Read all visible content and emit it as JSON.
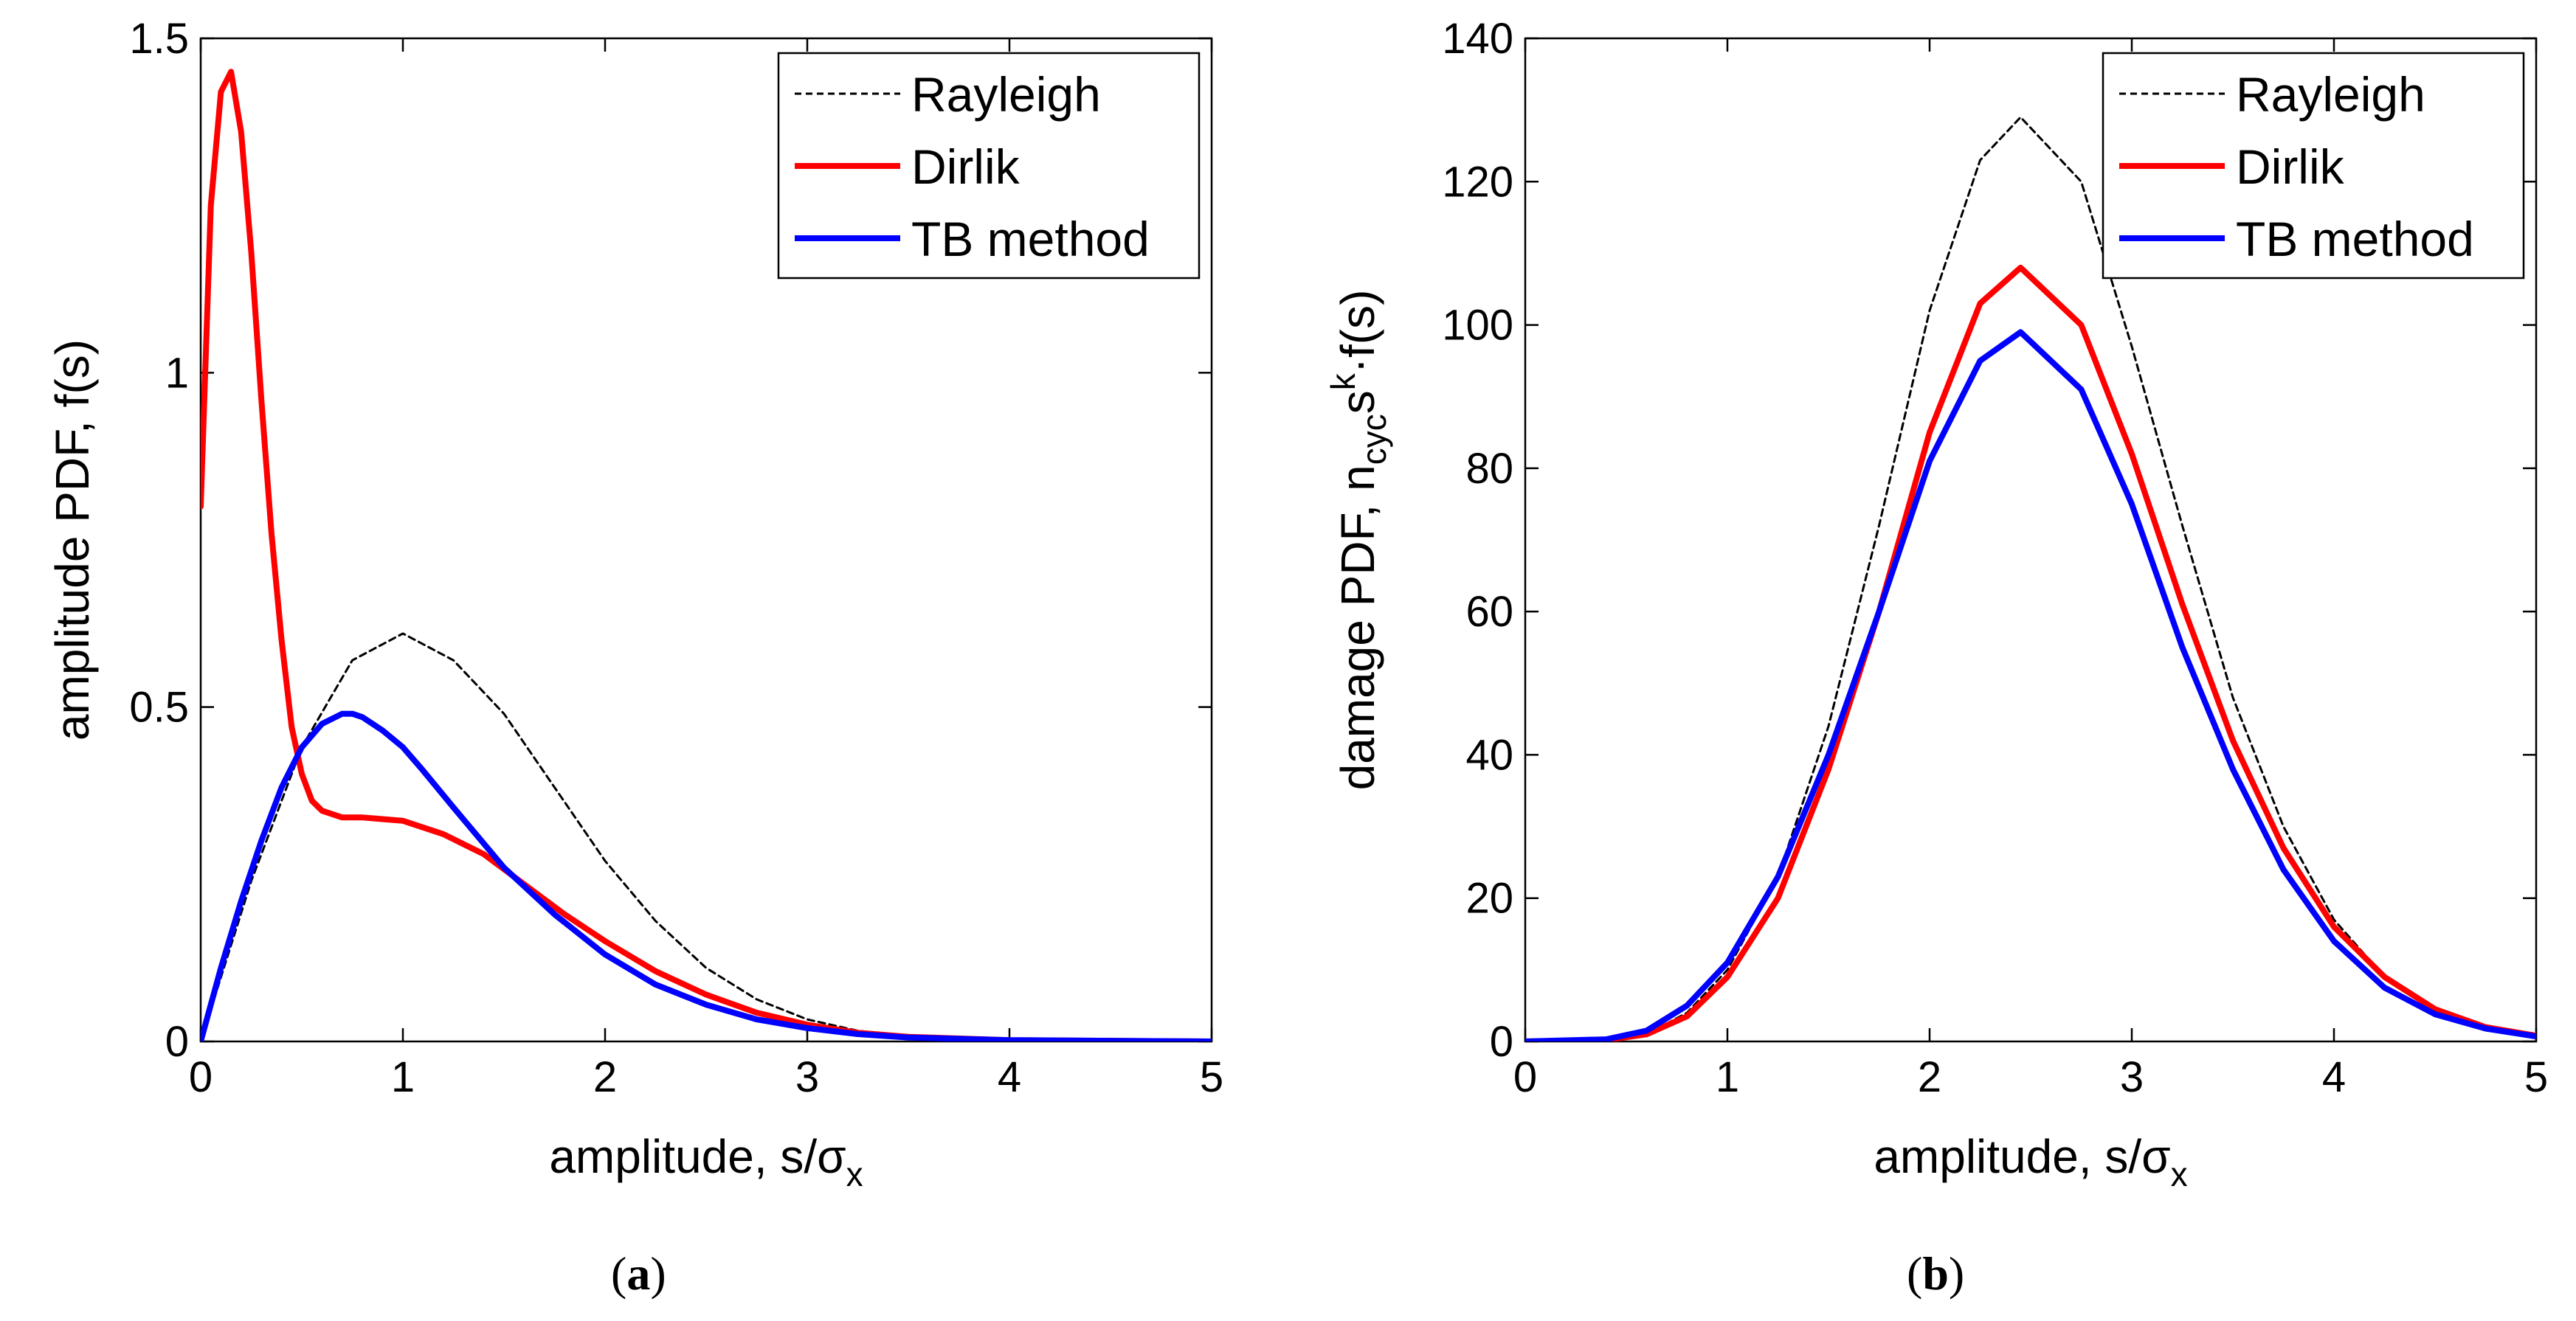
{
  "chart_data": [
    {
      "type": "line",
      "panel": "(a)",
      "panel_letter": "a",
      "xlabel": "amplitude, s/σ",
      "xlabel_sub": "x",
      "ylabel": "amplitude PDF, f(s)",
      "xlim": [
        0,
        5
      ],
      "ylim": [
        0,
        1.5
      ],
      "xticks": [
        "0",
        "1",
        "2",
        "3",
        "4",
        "5"
      ],
      "yticks": [
        "0",
        "0.5",
        "1",
        "1.5"
      ],
      "grid": false,
      "legend_placement": "top-right",
      "series": [
        {
          "name": "Rayleigh",
          "color": "#000000",
          "style": "dashed",
          "x": [
            0,
            0.25,
            0.5,
            0.75,
            1.0,
            1.25,
            1.5,
            1.75,
            2.0,
            2.25,
            2.5,
            2.75,
            3.0,
            3.25,
            3.5,
            3.75,
            4.0,
            4.5,
            5.0
          ],
          "y": [
            0,
            0.24,
            0.44,
            0.57,
            0.61,
            0.57,
            0.49,
            0.38,
            0.27,
            0.18,
            0.11,
            0.063,
            0.033,
            0.016,
            0.008,
            0.003,
            0.001,
            0.0002,
            0
          ]
        },
        {
          "name": "Dirlik",
          "color": "#ff0000",
          "style": "solid",
          "x": [
            0,
            0.05,
            0.1,
            0.15,
            0.2,
            0.25,
            0.3,
            0.35,
            0.4,
            0.45,
            0.5,
            0.55,
            0.6,
            0.7,
            0.8,
            1.0,
            1.2,
            1.4,
            1.6,
            1.8,
            2.0,
            2.25,
            2.5,
            2.75,
            3.0,
            3.25,
            3.5,
            4.0,
            5.0
          ],
          "y": [
            0.8,
            1.25,
            1.42,
            1.45,
            1.36,
            1.18,
            0.96,
            0.76,
            0.6,
            0.47,
            0.4,
            0.36,
            0.345,
            0.335,
            0.335,
            0.33,
            0.31,
            0.28,
            0.235,
            0.19,
            0.15,
            0.105,
            0.07,
            0.043,
            0.025,
            0.013,
            0.007,
            0.002,
            0
          ]
        },
        {
          "name": "TB method",
          "color": "#0000ff",
          "style": "solid",
          "x": [
            0,
            0.1,
            0.2,
            0.3,
            0.4,
            0.5,
            0.6,
            0.7,
            0.75,
            0.8,
            0.9,
            1.0,
            1.1,
            1.25,
            1.5,
            1.75,
            2.0,
            2.25,
            2.5,
            2.75,
            3.0,
            3.25,
            3.5,
            4.0,
            5.0
          ],
          "y": [
            0,
            0.11,
            0.21,
            0.3,
            0.38,
            0.44,
            0.475,
            0.49,
            0.49,
            0.485,
            0.465,
            0.44,
            0.405,
            0.35,
            0.26,
            0.19,
            0.13,
            0.085,
            0.055,
            0.033,
            0.02,
            0.011,
            0.006,
            0.002,
            0
          ]
        }
      ]
    },
    {
      "type": "line",
      "panel": "(b)",
      "panel_letter": "b",
      "xlabel": "amplitude, s/σ",
      "xlabel_sub": "x",
      "ylabel_parts": [
        "damage PDF,  n",
        "cyc",
        "s",
        "k",
        "·f(s)"
      ],
      "xlim": [
        0,
        5
      ],
      "ylim": [
        0,
        140
      ],
      "xticks": [
        "0",
        "1",
        "2",
        "3",
        "4",
        "5"
      ],
      "yticks": [
        "0",
        "20",
        "40",
        "60",
        "80",
        "100",
        "120",
        "140"
      ],
      "grid": false,
      "legend_placement": "top-right",
      "series": [
        {
          "name": "Rayleigh",
          "color": "#000000",
          "style": "dashed",
          "x": [
            0,
            0.4,
            0.6,
            0.8,
            1.0,
            1.25,
            1.5,
            1.75,
            2.0,
            2.25,
            2.45,
            2.75,
            3.0,
            3.25,
            3.5,
            3.75,
            4.0,
            4.25,
            4.5,
            4.75,
            5.0
          ],
          "y": [
            0,
            0.2,
            1,
            4,
            10,
            23,
            44,
            72,
            102,
            123,
            129,
            120,
            97,
            72,
            48,
            30,
            17,
            9,
            4.5,
            2,
            1
          ]
        },
        {
          "name": "Dirlik",
          "color": "#ff0000",
          "style": "solid",
          "x": [
            0,
            0.4,
            0.6,
            0.8,
            1.0,
            1.25,
            1.5,
            1.75,
            2.0,
            2.25,
            2.45,
            2.75,
            3.0,
            3.25,
            3.5,
            3.75,
            4.0,
            4.25,
            4.5,
            4.75,
            5.0
          ],
          "y": [
            0,
            0.2,
            1,
            3.5,
            9,
            20,
            38,
            60,
            85,
            103,
            108,
            100,
            82,
            61,
            42,
            27,
            16,
            9,
            4.5,
            2,
            0.8
          ]
        },
        {
          "name": "TB method",
          "color": "#0000ff",
          "style": "solid",
          "x": [
            0,
            0.4,
            0.6,
            0.8,
            1.0,
            1.25,
            1.5,
            1.75,
            2.0,
            2.25,
            2.45,
            2.75,
            3.0,
            3.25,
            3.5,
            3.75,
            4.0,
            4.25,
            4.5,
            4.75,
            5.0
          ],
          "y": [
            0,
            0.3,
            1.5,
            5,
            11,
            23,
            40,
            60,
            81,
            95,
            99,
            91,
            75,
            55,
            38,
            24,
            14,
            7.5,
            3.8,
            1.8,
            0.7
          ]
        }
      ]
    }
  ]
}
